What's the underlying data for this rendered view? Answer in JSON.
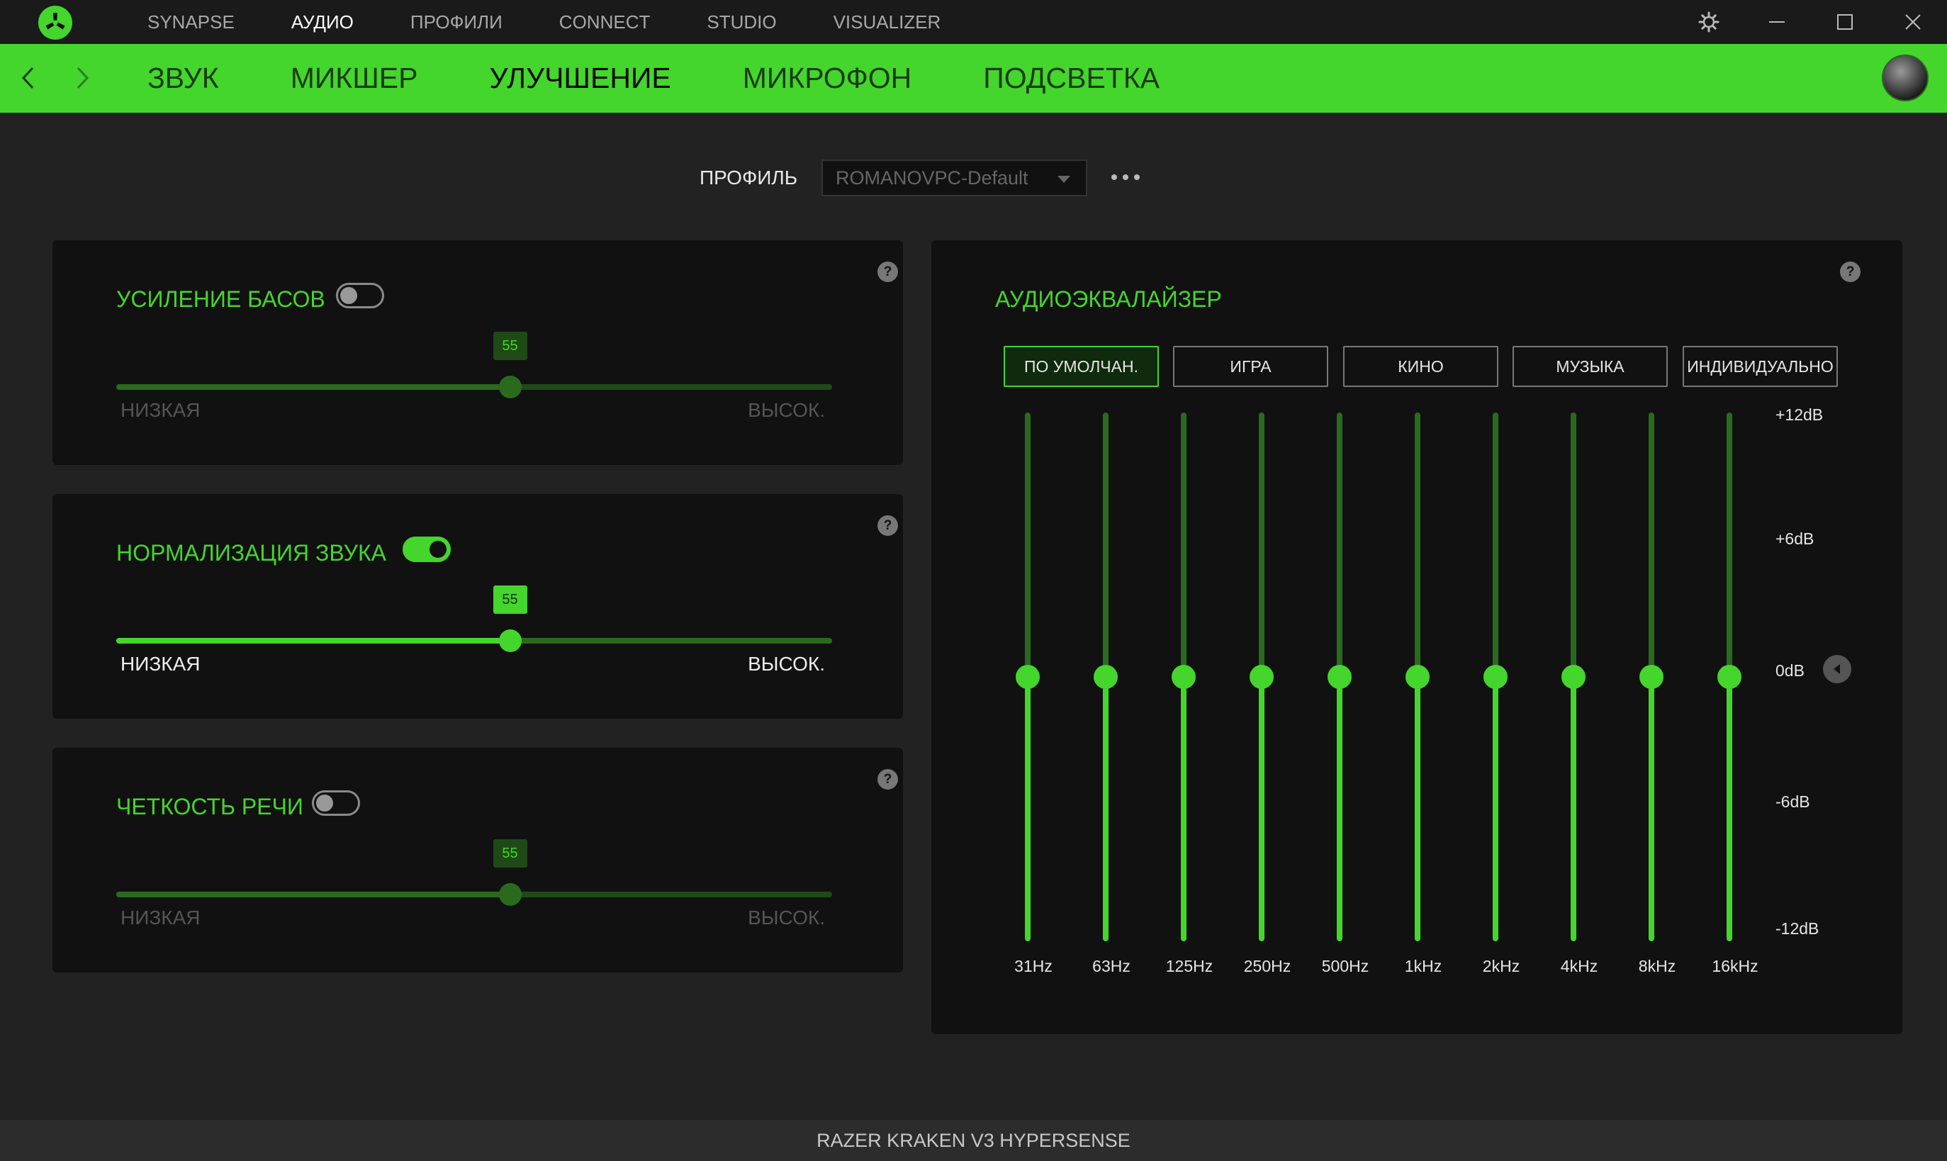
{
  "titlebar": {
    "tabs": [
      {
        "label": "SYNAPSE",
        "active": false
      },
      {
        "label": "АУДИО",
        "active": true
      },
      {
        "label": "ПРОФИЛИ",
        "active": false
      },
      {
        "label": "CONNECT",
        "active": false
      },
      {
        "label": "STUDIO",
        "active": false
      },
      {
        "label": "VISUALIZER",
        "active": false
      }
    ]
  },
  "subnav": {
    "tabs": [
      {
        "label": "ЗВУК",
        "active": false
      },
      {
        "label": "МИКШЕР",
        "active": false
      },
      {
        "label": "УЛУЧШЕНИЕ",
        "active": true
      },
      {
        "label": "МИКРОФОН",
        "active": false
      },
      {
        "label": "ПОДСВЕТКА",
        "active": false
      }
    ]
  },
  "profile": {
    "label": "ПРОФИЛЬ",
    "selected": "ROMANOVPC-Default"
  },
  "enhancements": [
    {
      "title": "УСИЛЕНИЕ БАСОВ",
      "enabled": false,
      "value": 55,
      "low_label": "НИЗКАЯ",
      "high_label": "ВЫСОК."
    },
    {
      "title": "НОРМАЛИЗАЦИЯ ЗВУКА",
      "enabled": true,
      "value": 55,
      "low_label": "НИЗКАЯ",
      "high_label": "ВЫСОК."
    },
    {
      "title": "ЧЕТКОСТЬ РЕЧИ",
      "enabled": false,
      "value": 55,
      "low_label": "НИЗКАЯ",
      "high_label": "ВЫСОК."
    }
  ],
  "equalizer": {
    "title": "АУДИОЭКВАЛАЙЗЕР",
    "presets": [
      {
        "label": "ПО УМОЛЧАН.",
        "active": true
      },
      {
        "label": "ИГРА",
        "active": false
      },
      {
        "label": "КИНО",
        "active": false
      },
      {
        "label": "МУЗЫКА",
        "active": false
      },
      {
        "label": "ИНДИВИДУАЛЬНО",
        "active": false
      }
    ],
    "db_range": [
      -12,
      12
    ],
    "db_labels": [
      "+12dB",
      "+6dB",
      "0dB",
      "-6dB",
      "-12dB"
    ],
    "bands": [
      {
        "freq": "31Hz",
        "gain_db": 0
      },
      {
        "freq": "63Hz",
        "gain_db": 0
      },
      {
        "freq": "125Hz",
        "gain_db": 0
      },
      {
        "freq": "250Hz",
        "gain_db": 0
      },
      {
        "freq": "500Hz",
        "gain_db": 0
      },
      {
        "freq": "1kHz",
        "gain_db": 0
      },
      {
        "freq": "2kHz",
        "gain_db": 0
      },
      {
        "freq": "4kHz",
        "gain_db": 0
      },
      {
        "freq": "8kHz",
        "gain_db": 0
      },
      {
        "freq": "16kHz",
        "gain_db": 0
      }
    ]
  },
  "statusbar": {
    "device": "RAZER KRAKEN V3 HYPERSENSE"
  },
  "colors": {
    "accent": "#44d62c",
    "accent_dim": "#2a6a1e",
    "background": "#222222",
    "card": "#111111"
  }
}
